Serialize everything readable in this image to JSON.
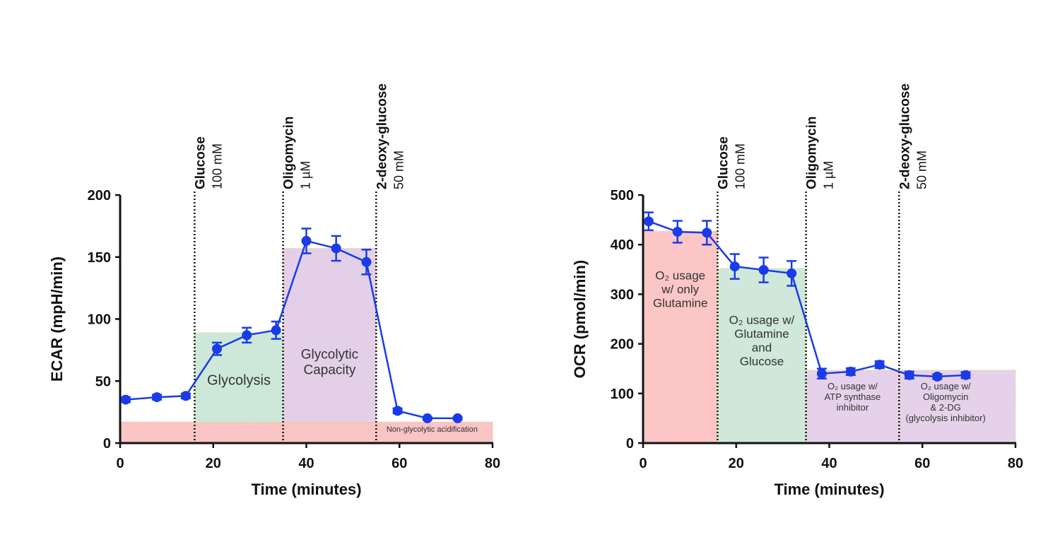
{
  "chart_data": [
    {
      "type": "line",
      "xlabel": "Time (minutes)",
      "ylabel": "ECAR (mpH/min)",
      "xlim": [
        0,
        80
      ],
      "ylim": [
        0,
        200
      ],
      "xticks": [
        0,
        20,
        40,
        60,
        80
      ],
      "yticks": [
        0,
        50,
        100,
        150,
        200
      ],
      "grid": false,
      "series_color": "#1a3be8",
      "x": [
        1.2,
        7.9,
        14.1,
        20.8,
        27.2,
        33.5,
        40.0,
        46.4,
        52.9,
        59.6,
        66.0,
        72.5
      ],
      "y": [
        35,
        37,
        38,
        76,
        87,
        91,
        163,
        157,
        146,
        26,
        20,
        20
      ],
      "error": [
        2,
        2,
        2,
        5,
        6,
        7,
        10,
        10,
        10,
        2,
        1,
        1
      ],
      "injections": [
        {
          "x": 16,
          "label": "Glucose",
          "concentration": "100 mM"
        },
        {
          "x": 35,
          "label": "Oligomycin",
          "concentration": "1 µM"
        },
        {
          "x": 55,
          "label": "2-deoxy-glucose",
          "concentration": "50 mM"
        }
      ],
      "regions": [
        {
          "x": [
            0,
            80
          ],
          "y": [
            0,
            17
          ],
          "color": "#f9c4c4",
          "text": [
            "Non-glycolytic acidification"
          ]
        },
        {
          "x": [
            16,
            35
          ],
          "y": [
            17,
            89
          ],
          "color": "#cde8d8",
          "text": [
            "Glycolysis"
          ]
        },
        {
          "x": [
            35,
            55
          ],
          "y": [
            17,
            157
          ],
          "color": "#e3d0e8",
          "text": [
            "Glycolytic",
            "Capacity"
          ]
        }
      ]
    },
    {
      "type": "line",
      "xlabel": "Time (minutes)",
      "ylabel": "OCR (pmol/min)",
      "xlim": [
        0,
        80
      ],
      "ylim": [
        0,
        500
      ],
      "xticks": [
        0,
        20,
        40,
        60,
        80
      ],
      "yticks": [
        0,
        100,
        200,
        300,
        400,
        500
      ],
      "grid": false,
      "series_color": "#1a3be8",
      "x": [
        1.2,
        7.4,
        13.7,
        19.7,
        25.9,
        31.9,
        38.4,
        44.6,
        50.8,
        57.2,
        63.2,
        69.3
      ],
      "y": [
        447,
        426,
        424,
        356,
        349,
        342,
        140,
        144,
        158,
        137,
        134,
        137
      ],
      "error": [
        18,
        22,
        24,
        25,
        25,
        25,
        10,
        7,
        7,
        7,
        5,
        6
      ],
      "injections": [
        {
          "x": 16,
          "label": "Glucose",
          "concentration": "100 mM"
        },
        {
          "x": 35,
          "label": "Oligomycin",
          "concentration": "1 µM"
        },
        {
          "x": 55,
          "label": "2-deoxy-glucose",
          "concentration": "50 mM"
        }
      ],
      "regions": [
        {
          "x": [
            0,
            16
          ],
          "y": [
            0,
            427
          ],
          "color": "#fcc6c6",
          "text": [
            "O₂ usage",
            "w/  only",
            "Glutamine"
          ]
        },
        {
          "x": [
            16,
            35
          ],
          "y": [
            0,
            352
          ],
          "color": "#cfe8d9",
          "text": [
            "O₂ usage w/",
            "Glutamine",
            "and",
            "Glucose"
          ]
        },
        {
          "x": [
            35,
            55
          ],
          "y": [
            0,
            147
          ],
          "color": "#e5d2ea",
          "text": [
            "O₂ usage w/",
            "ATP synthase",
            "inhibitor"
          ]
        },
        {
          "x": [
            55,
            80
          ],
          "y": [
            0,
            147
          ],
          "color": "#e5d2ea",
          "text": [
            "O₂ usage w/",
            "Oligomycin",
            "& 2-DG",
            "(glycolysis inhibitor)"
          ]
        }
      ]
    }
  ]
}
